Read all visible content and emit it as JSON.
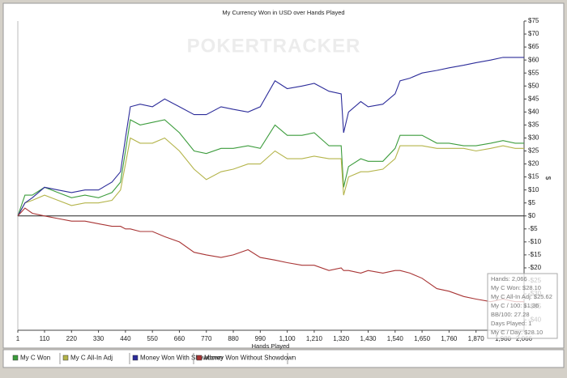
{
  "chart_data": {
    "type": "line",
    "title": "My Currency Won in USD over Hands Played",
    "watermark": "POKERTRACKER",
    "x_label": "Hands Played",
    "y_label": "$",
    "x": [
      1,
      30,
      60,
      110,
      165,
      220,
      275,
      330,
      385,
      420,
      440,
      460,
      500,
      550,
      600,
      660,
      720,
      770,
      830,
      880,
      940,
      990,
      1050,
      1100,
      1160,
      1210,
      1270,
      1320,
      1330,
      1350,
      1400,
      1430,
      1490,
      1540,
      1560,
      1600,
      1650,
      1710,
      1760,
      1820,
      1870,
      1930,
      1980,
      2030,
      2066
    ],
    "series": [
      {
        "name": "My C Won",
        "color": "#3c9c3c",
        "values": [
          0,
          8,
          8,
          11,
          9,
          7,
          8,
          7,
          9,
          13,
          25,
          37,
          35,
          36,
          37,
          32,
          25,
          24,
          26,
          26,
          27,
          26,
          35,
          31,
          31,
          32,
          27,
          27,
          11,
          19,
          22,
          21,
          21,
          26,
          31,
          31,
          31,
          28,
          28,
          27,
          27,
          28,
          29,
          28,
          28
        ]
      },
      {
        "name": "My C All-In Adj",
        "color": "#b4b44a",
        "values": [
          0,
          5,
          6,
          8,
          6,
          4,
          5,
          5,
          6,
          10,
          20,
          30,
          28,
          28,
          30,
          25,
          18,
          14,
          17,
          18,
          20,
          20,
          25,
          22,
          22,
          23,
          22,
          22,
          8,
          15,
          17,
          17,
          18,
          22,
          27,
          27,
          27,
          26,
          26,
          26,
          25,
          26,
          27,
          26,
          26
        ]
      },
      {
        "name": "Money Won With Showdown",
        "color": "#2c2c9a",
        "values": [
          0,
          5,
          7,
          11,
          10,
          9,
          10,
          10,
          13,
          17,
          30,
          42,
          43,
          42,
          45,
          42,
          39,
          39,
          42,
          41,
          40,
          42,
          52,
          49,
          50,
          51,
          48,
          47,
          32,
          40,
          44,
          42,
          43,
          47,
          52,
          53,
          55,
          56,
          57,
          58,
          59,
          60,
          61,
          61,
          61
        ]
      },
      {
        "name": "Money Won Without Showdown",
        "color": "#a83434",
        "values": [
          0,
          3,
          1,
          0,
          -1,
          -2,
          -2,
          -3,
          -4,
          -4,
          -5,
          -5,
          -6,
          -6,
          -8,
          -10,
          -14,
          -15,
          -16,
          -15,
          -13,
          -16,
          -17,
          -18,
          -19,
          -19,
          -21,
          -20,
          -21,
          -21,
          -22,
          -21,
          -22,
          -21,
          -21,
          -22,
          -24,
          -28,
          -29,
          -31,
          -32,
          -33,
          -32,
          -33,
          -33
        ]
      }
    ],
    "xlim": [
      1,
      2066
    ],
    "xticks": [
      1,
      110,
      220,
      330,
      440,
      550,
      660,
      770,
      880,
      990,
      {
        "value": 1100,
        "label": "1,100"
      },
      {
        "value": 1210,
        "label": "1,210"
      },
      {
        "value": 1320,
        "label": "1,320"
      },
      {
        "value": 1430,
        "label": "1,430"
      },
      {
        "value": 1540,
        "label": "1,540"
      },
      {
        "value": 1650,
        "label": "1,650"
      },
      {
        "value": 1760,
        "label": "1,760"
      },
      {
        "value": 1870,
        "label": "1,870"
      },
      {
        "value": 1980,
        "label": "1,980"
      },
      {
        "value": 2066,
        "label": "2,066"
      }
    ],
    "ylim": [
      -44,
      75
    ],
    "yticks": [
      {
        "value": 75,
        "label": "$75"
      },
      {
        "value": 70,
        "label": "$70"
      },
      {
        "value": 65,
        "label": "$65"
      },
      {
        "value": 60,
        "label": "$60"
      },
      {
        "value": 55,
        "label": "$55"
      },
      {
        "value": 50,
        "label": "$50"
      },
      {
        "value": 45,
        "label": "$45"
      },
      {
        "value": 40,
        "label": "$40"
      },
      {
        "value": 35,
        "label": "$35"
      },
      {
        "value": 30,
        "label": "$30"
      },
      {
        "value": 25,
        "label": "$25"
      },
      {
        "value": 20,
        "label": "$20"
      },
      {
        "value": 15,
        "label": "$15"
      },
      {
        "value": 10,
        "label": "$10"
      },
      {
        "value": 5,
        "label": "$5"
      },
      {
        "value": 0,
        "label": "$0"
      },
      {
        "value": -5,
        "label": "-$5"
      },
      {
        "value": -10,
        "label": "-$10"
      },
      {
        "value": -15,
        "label": "-$15"
      },
      {
        "value": -20,
        "label": "-$20"
      },
      {
        "value": -25,
        "label": "-$25"
      },
      {
        "value": -30,
        "label": "-$30"
      },
      {
        "value": -35,
        "label": "-$35"
      },
      {
        "value": -40,
        "label": "-$40"
      }
    ],
    "grid": false,
    "tooltip": [
      "Hands: 2,066",
      "My C Won: $28.10",
      "My C All-In Adj: $25.62",
      "My C / 100: $1.36",
      "BB/100: 27.28",
      "Days Played: 1",
      "My C / Day: $28.10"
    ]
  }
}
